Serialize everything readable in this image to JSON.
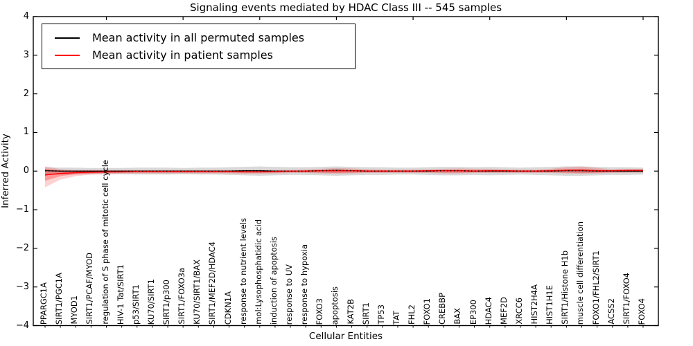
{
  "chart_data": {
    "type": "line",
    "title": "Signaling events mediated by HDAC Class III -- 545 samples",
    "xlabel": "Cellular Entities",
    "ylabel": "Inferred Activity",
    "ylim": [
      -4,
      4
    ],
    "yticks": [
      4,
      3,
      2,
      1,
      0,
      -1,
      -2,
      -3,
      -4
    ],
    "grid": false,
    "legend_position": "upper left",
    "categories": [
      "PPARGC1A",
      "SIRT1/PGC1A",
      "MYOD1",
      "SIRT1/PCAF/MYOD",
      "regulation of S phase of mitotic cell cycle",
      "HIV-1 Tat/SIRT1",
      "p53/SIRT1",
      "KU70/SIRT1",
      "SIRT1/p300",
      "SIRT1/FOXO3a",
      "KU70/SIRT1/BAX",
      "SIRT1/MEF2D/HDAC4",
      "CDKN1A",
      "response to nutrient levels",
      "mol:Lysophosphatidic acid",
      "induction of apoptosis",
      "response to UV",
      "response to hypoxia",
      "FOXO3",
      "apoptosis",
      "KAT2B",
      "SIRT1",
      "TP53",
      "TAT",
      "FHL2",
      "FOXO1",
      "CREBBP",
      "BAX",
      "EP300",
      "HDAC4",
      "MEF2D",
      "XRCC6",
      "HIST2H4A",
      "HIST1H1E",
      "SIRT1/Histone H1b",
      "muscle cell differentiation",
      "FOXO1/FHL2/SIRT1",
      "ACSS2",
      "SIRT1/FOXO4",
      "FOXO4"
    ],
    "series": [
      {
        "name": "Mean activity in all permuted samples",
        "color": "#000000",
        "values": [
          0.01,
          0.0,
          0.0,
          0.0,
          0.0,
          0.0,
          0.0,
          0.0,
          0.0,
          0.0,
          0.0,
          0.0,
          0.0,
          0.01,
          0.01,
          0.0,
          0.0,
          0.0,
          0.01,
          0.02,
          0.01,
          0.0,
          0.0,
          0.0,
          0.0,
          0.0,
          0.01,
          0.01,
          0.0,
          0.0,
          0.0,
          0.0,
          0.0,
          0.0,
          0.01,
          0.01,
          0.0,
          0.0,
          0.0,
          0.0
        ]
      },
      {
        "name": "Mean activity in patient samples",
        "color": "#ff0000",
        "values": [
          -0.1,
          -0.06,
          -0.04,
          -0.03,
          -0.02,
          -0.02,
          -0.01,
          -0.01,
          -0.01,
          -0.01,
          -0.01,
          -0.01,
          -0.01,
          -0.02,
          -0.02,
          -0.01,
          0.0,
          0.0,
          0.01,
          0.01,
          0.01,
          0.0,
          0.0,
          0.0,
          0.0,
          0.01,
          0.01,
          0.01,
          0.0,
          0.01,
          0.01,
          0.0,
          0.0,
          0.01,
          0.02,
          0.02,
          0.01,
          0.01,
          0.02,
          0.02
        ]
      }
    ],
    "bands": [
      {
        "name": "permuted-samples-std-band",
        "color": "rgba(0,0,0,0.15)",
        "upper": [
          0.1,
          0.09,
          0.09,
          0.08,
          0.08,
          0.08,
          0.09,
          0.09,
          0.09,
          0.08,
          0.09,
          0.09,
          0.1,
          0.11,
          0.12,
          0.11,
          0.1,
          0.1,
          0.11,
          0.12,
          0.11,
          0.1,
          0.1,
          0.09,
          0.09,
          0.1,
          0.11,
          0.11,
          0.1,
          0.11,
          0.1,
          0.09,
          0.1,
          0.11,
          0.12,
          0.12,
          0.11,
          0.1,
          0.1,
          0.09
        ],
        "lower": [
          -0.1,
          -0.09,
          -0.09,
          -0.08,
          -0.08,
          -0.08,
          -0.09,
          -0.09,
          -0.09,
          -0.08,
          -0.09,
          -0.09,
          -0.1,
          -0.11,
          -0.12,
          -0.11,
          -0.1,
          -0.1,
          -0.11,
          -0.12,
          -0.11,
          -0.1,
          -0.1,
          -0.09,
          -0.09,
          -0.1,
          -0.11,
          -0.11,
          -0.1,
          -0.11,
          -0.1,
          -0.09,
          -0.1,
          -0.11,
          -0.12,
          -0.12,
          -0.11,
          -0.1,
          -0.1,
          -0.09
        ]
      },
      {
        "name": "patient-samples-std-outer-band",
        "color": "rgba(255,0,0,0.18)",
        "upper": [
          0.12,
          0.05,
          0.03,
          0.03,
          0.03,
          0.03,
          0.03,
          0.03,
          0.03,
          0.03,
          0.03,
          0.03,
          0.03,
          0.03,
          0.03,
          0.03,
          0.03,
          0.04,
          0.06,
          0.08,
          0.07,
          0.05,
          0.04,
          0.04,
          0.04,
          0.05,
          0.06,
          0.07,
          0.06,
          0.06,
          0.05,
          0.04,
          0.04,
          0.06,
          0.1,
          0.12,
          0.08,
          0.05,
          0.05,
          0.05
        ],
        "lower": [
          -0.42,
          -0.22,
          -0.13,
          -0.09,
          -0.08,
          -0.07,
          -0.06,
          -0.06,
          -0.06,
          -0.06,
          -0.06,
          -0.06,
          -0.06,
          -0.07,
          -0.07,
          -0.06,
          -0.05,
          -0.05,
          -0.06,
          -0.07,
          -0.06,
          -0.05,
          -0.05,
          -0.05,
          -0.05,
          -0.05,
          -0.06,
          -0.06,
          -0.05,
          -0.05,
          -0.05,
          -0.05,
          -0.05,
          -0.05,
          -0.06,
          -0.07,
          -0.06,
          -0.05,
          -0.04,
          -0.04
        ]
      },
      {
        "name": "patient-samples-std-inner-band",
        "color": "rgba(255,0,0,0.28)",
        "upper": [
          0.06,
          0.02,
          0.01,
          0.01,
          0.01,
          0.01,
          0.01,
          0.01,
          0.01,
          0.01,
          0.01,
          0.01,
          0.01,
          0.01,
          0.01,
          0.01,
          0.01,
          0.02,
          0.03,
          0.04,
          0.03,
          0.02,
          0.02,
          0.02,
          0.02,
          0.02,
          0.03,
          0.03,
          0.03,
          0.03,
          0.02,
          0.02,
          0.02,
          0.03,
          0.05,
          0.06,
          0.04,
          0.02,
          0.02,
          0.02
        ],
        "lower": [
          -0.25,
          -0.13,
          -0.08,
          -0.06,
          -0.05,
          -0.04,
          -0.04,
          -0.04,
          -0.04,
          -0.04,
          -0.04,
          -0.04,
          -0.04,
          -0.04,
          -0.04,
          -0.04,
          -0.03,
          -0.03,
          -0.04,
          -0.05,
          -0.04,
          -0.03,
          -0.03,
          -0.03,
          -0.03,
          -0.03,
          -0.04,
          -0.04,
          -0.03,
          -0.03,
          -0.03,
          -0.03,
          -0.03,
          -0.03,
          -0.04,
          -0.05,
          -0.04,
          -0.03,
          -0.03,
          -0.03
        ]
      }
    ]
  }
}
